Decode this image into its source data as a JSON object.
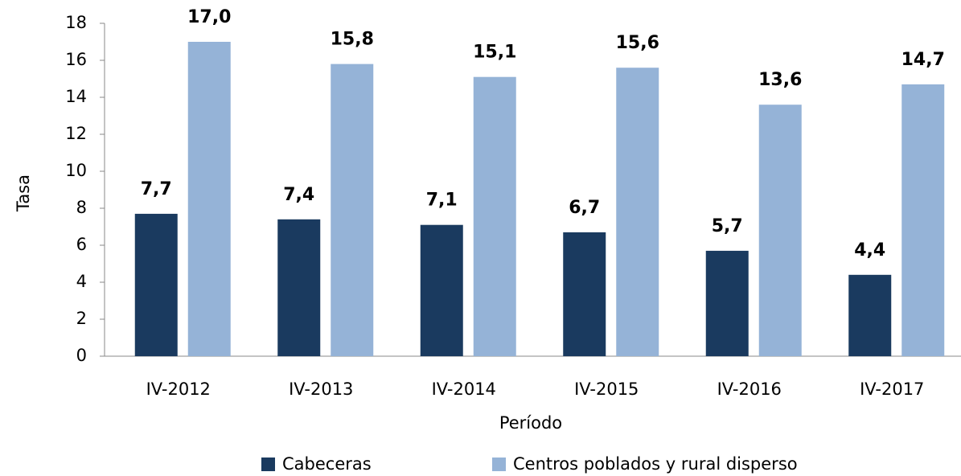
{
  "chart_data": {
    "type": "bar",
    "categories": [
      "IV-2012",
      "IV-2013",
      "IV-2014",
      "IV-2015",
      "IV-2016",
      "IV-2017"
    ],
    "series": [
      {
        "name": "Cabeceras",
        "color": "#1a3a5f",
        "values": [
          7.7,
          7.4,
          7.1,
          6.7,
          5.7,
          4.4
        ],
        "value_labels": [
          "7,7",
          "7,4",
          "7,1",
          "6,7",
          "5,7",
          "4,4"
        ]
      },
      {
        "name": "Centros poblados y rural disperso",
        "color": "#95b3d7",
        "values": [
          17.0,
          15.8,
          15.1,
          15.6,
          13.6,
          14.7
        ],
        "value_labels": [
          "17,0",
          "15,8",
          "15,1",
          "15,6",
          "13,6",
          "14,7"
        ]
      }
    ],
    "xlabel": "Período",
    "ylabel": "Tasa",
    "ylim": [
      0,
      18
    ],
    "yticks": [
      0,
      2,
      4,
      6,
      8,
      10,
      12,
      14,
      16,
      18
    ],
    "grid": false,
    "legend": "bottom"
  }
}
